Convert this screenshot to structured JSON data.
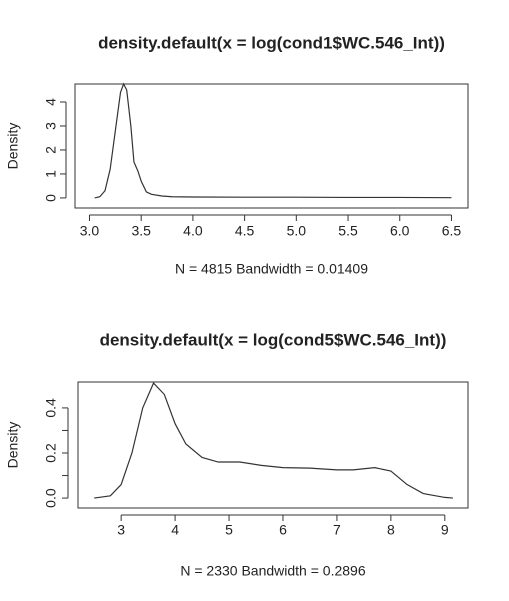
{
  "chart_data": [
    {
      "type": "line",
      "title": "density.default(x = log(cond1$WC.546_Int))",
      "xlabel": "N = 4815   Bandwidth = 0.01409",
      "ylabel": "Density",
      "color": "#333333",
      "x": [
        3.05,
        3.1,
        3.15,
        3.2,
        3.25,
        3.3,
        3.33,
        3.36,
        3.4,
        3.43,
        3.47,
        3.5,
        3.55,
        3.6,
        3.7,
        3.8,
        4.0,
        4.5,
        5.0,
        5.5,
        6.0,
        6.5
      ],
      "values": [
        0,
        0.05,
        0.3,
        1.2,
        2.8,
        4.4,
        4.75,
        4.5,
        3.0,
        1.5,
        1.1,
        0.7,
        0.25,
        0.15,
        0.08,
        0.05,
        0.04,
        0.03,
        0.03,
        0.02,
        0.02,
        0.01
      ],
      "xlim": [
        2.86,
        6.66
      ],
      "ylim": [
        -0.42,
        4.75
      ],
      "xticks": [
        {
          "value": 3,
          "label": "3.0"
        },
        3.5,
        {
          "value": 4,
          "label": "4.0"
        },
        4.5,
        {
          "value": 5,
          "label": "5.0"
        },
        5.5,
        {
          "value": 6,
          "label": "6.0"
        },
        6.5
      ],
      "yticks": [
        0,
        1,
        2,
        3,
        4
      ]
    },
    {
      "type": "line",
      "title": "density.default(x = log(cond5$WC.546_Int))",
      "xlabel": "N = 2330   Bandwidth = 0.2896",
      "ylabel": "Density",
      "color": "#333333",
      "x": [
        2.5,
        2.8,
        3.0,
        3.2,
        3.4,
        3.6,
        3.8,
        4.0,
        4.2,
        4.5,
        4.8,
        5.2,
        5.6,
        6.0,
        6.5,
        7.0,
        7.3,
        7.7,
        8.0,
        8.3,
        8.6,
        9.0,
        9.15
      ],
      "values": [
        0,
        0.01,
        0.06,
        0.2,
        0.4,
        0.51,
        0.46,
        0.33,
        0.24,
        0.18,
        0.16,
        0.16,
        0.145,
        0.135,
        0.133,
        0.125,
        0.125,
        0.135,
        0.12,
        0.06,
        0.02,
        0.003,
        0
      ],
      "xlim": [
        2.2,
        9.43
      ],
      "ylim": [
        -0.044,
        0.515
      ],
      "xticks": [
        3,
        4,
        5,
        6,
        7,
        8,
        9
      ],
      "yticks": [
        {
          "value": 0,
          "label": "0.0"
        },
        0.2,
        0.4
      ],
      "yminorticks": [
        0.1,
        0.3
      ]
    }
  ]
}
